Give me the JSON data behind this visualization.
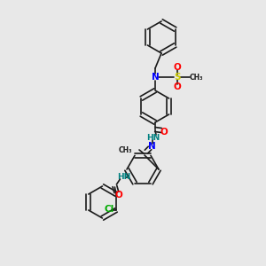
{
  "bg_color": "#e8e8e8",
  "bond_color": "#1a1a1a",
  "bond_width": 1.2,
  "atom_colors": {
    "N": "#0000ff",
    "O": "#ff0000",
    "S": "#cccc00",
    "Cl": "#00aa00",
    "HN": "#008080",
    "C": "#1a1a1a"
  },
  "font_size_atom": 7.5,
  "font_size_small": 6.5
}
